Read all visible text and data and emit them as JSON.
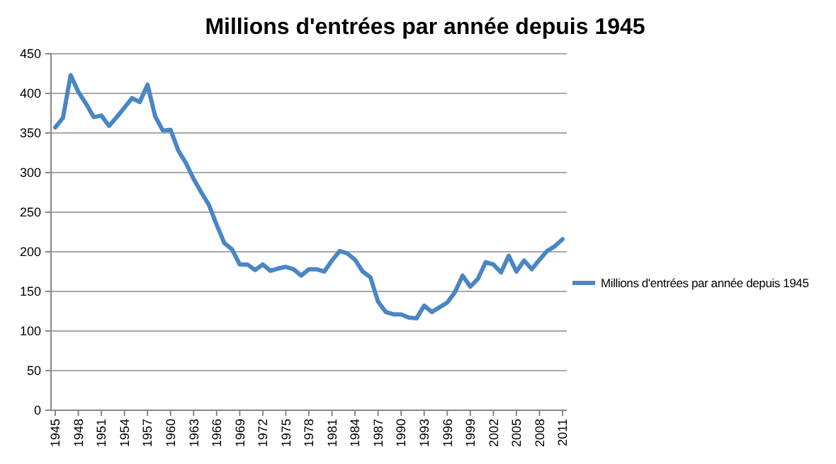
{
  "chart_data": {
    "type": "line",
    "title": "Millions d'entrées par année depuis 1945",
    "categories": [
      "1945",
      null,
      null,
      "1948",
      null,
      null,
      "1951",
      null,
      null,
      "1954",
      null,
      null,
      "1957",
      null,
      null,
      "1960",
      null,
      null,
      "1963",
      null,
      null,
      "1966",
      null,
      null,
      "1969",
      null,
      null,
      "1972",
      null,
      null,
      "1975",
      null,
      null,
      "1978",
      null,
      null,
      "1981",
      null,
      null,
      "1984",
      null,
      null,
      "1987",
      null,
      null,
      "1990",
      null,
      null,
      "1993",
      null,
      null,
      "1996",
      null,
      null,
      "1999",
      null,
      null,
      "2002",
      null,
      null,
      "2005",
      null,
      null,
      "2008",
      null,
      null,
      "2011"
    ],
    "series": [
      {
        "name": "Millions d'entrées par année depuis 1945",
        "color": "#4a86c5",
        "values": [
          357,
          369,
          423,
          402,
          387,
          370,
          372,
          359,
          370,
          382,
          394,
          389,
          411,
          371,
          353,
          354,
          328,
          312,
          292,
          275,
          259,
          234,
          211,
          203,
          184,
          184,
          177,
          184,
          176,
          179,
          181,
          178,
          170,
          178,
          178,
          175,
          189,
          201,
          198,
          190,
          175,
          168,
          137,
          124,
          121,
          121,
          117,
          116,
          132,
          124,
          130,
          136,
          149,
          170,
          156,
          166,
          187,
          184,
          174,
          195,
          175,
          189,
          178,
          190,
          201,
          207,
          216
        ]
      }
    ],
    "ylim": [
      0,
      450
    ],
    "yticks": [
      0,
      50,
      100,
      150,
      200,
      250,
      300,
      350,
      400,
      450
    ],
    "grid": "y",
    "legend": "right",
    "marker": "none",
    "line_style": "solid"
  }
}
